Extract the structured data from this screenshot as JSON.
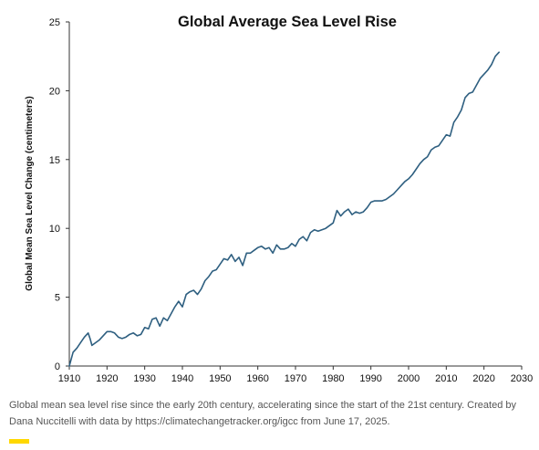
{
  "caption": "Global mean sea level rise since the early 20th century, accelerating since the start of the 21st century. Created by Dana Nuccitelli with data by https://climatechangetracker.org/igcc from June 17, 2025.",
  "colors": {
    "line": "#2e5f80",
    "axis": "#333333",
    "text": "#111111",
    "caption": "#555555",
    "accent": "#ffd800"
  },
  "chart_data": {
    "type": "line",
    "title": "Global Average Sea Level Rise",
    "xlabel": "",
    "ylabel": "Global Mean Sea Level Change (centimeters)",
    "xlim": [
      1910,
      2030
    ],
    "ylim": [
      0,
      25
    ],
    "xticks": [
      1910,
      1920,
      1930,
      1940,
      1950,
      1960,
      1970,
      1980,
      1990,
      2000,
      2010,
      2020,
      2030
    ],
    "yticks": [
      0,
      5,
      10,
      15,
      20,
      25
    ],
    "grid": false,
    "legend": "none",
    "series": [
      {
        "x": [
          1910,
          1911,
          1912,
          1913,
          1914,
          1915,
          1915.5,
          1916,
          1917,
          1918,
          1919,
          1920,
          1921,
          1922,
          1923,
          1924,
          1925,
          1926,
          1927,
          1928,
          1929,
          1930,
          1931,
          1932,
          1933,
          1934,
          1935,
          1936,
          1937,
          1938,
          1939,
          1940,
          1941,
          1942,
          1943,
          1944,
          1945,
          1946,
          1947,
          1948,
          1949,
          1950,
          1951,
          1952,
          1953,
          1954,
          1955,
          1956,
          1957,
          1958,
          1959,
          1960,
          1961,
          1962,
          1963,
          1964,
          1965,
          1966,
          1967,
          1968,
          1969,
          1970,
          1971,
          1972,
          1973,
          1974,
          1975,
          1976,
          1977,
          1978,
          1979,
          1980,
          1981,
          1982,
          1983,
          1984,
          1985,
          1986,
          1987,
          1988,
          1989,
          1990,
          1991,
          1992,
          1993,
          1994,
          1995,
          1996,
          1997,
          1998,
          1999,
          2000,
          2001,
          2002,
          2003,
          2004,
          2005,
          2006,
          2007,
          2008,
          2009,
          2010,
          2011,
          2012,
          2013,
          2014,
          2015,
          2016,
          2017,
          2018,
          2019,
          2020,
          2021,
          2022,
          2023,
          2024
        ],
        "values": [
          0.0,
          1.0,
          1.3,
          1.7,
          2.1,
          2.4,
          2.0,
          1.5,
          1.7,
          1.9,
          2.2,
          2.5,
          2.5,
          2.4,
          2.1,
          2.0,
          2.1,
          2.3,
          2.4,
          2.2,
          2.3,
          2.8,
          2.7,
          3.4,
          3.5,
          2.9,
          3.5,
          3.3,
          3.8,
          4.3,
          4.7,
          4.3,
          5.2,
          5.4,
          5.5,
          5.2,
          5.6,
          6.2,
          6.5,
          6.9,
          7.0,
          7.4,
          7.8,
          7.7,
          8.1,
          7.6,
          7.9,
          7.3,
          8.2,
          8.2,
          8.4,
          8.6,
          8.7,
          8.5,
          8.6,
          8.2,
          8.8,
          8.5,
          8.5,
          8.6,
          8.9,
          8.7,
          9.2,
          9.4,
          9.1,
          9.7,
          9.9,
          9.8,
          9.9,
          10.0,
          10.2,
          10.4,
          11.3,
          10.9,
          11.2,
          11.4,
          11.0,
          11.2,
          11.1,
          11.2,
          11.5,
          11.9,
          12.0,
          12.0,
          12.0,
          12.1,
          12.3,
          12.5,
          12.8,
          13.1,
          13.4,
          13.6,
          13.9,
          14.3,
          14.7,
          15.0,
          15.2,
          15.7,
          15.9,
          16.0,
          16.4,
          16.8,
          16.7,
          17.7,
          18.1,
          18.6,
          19.5,
          19.8,
          19.9,
          20.4,
          20.9,
          21.2,
          21.5,
          21.9,
          22.5,
          22.8
        ]
      }
    ]
  }
}
